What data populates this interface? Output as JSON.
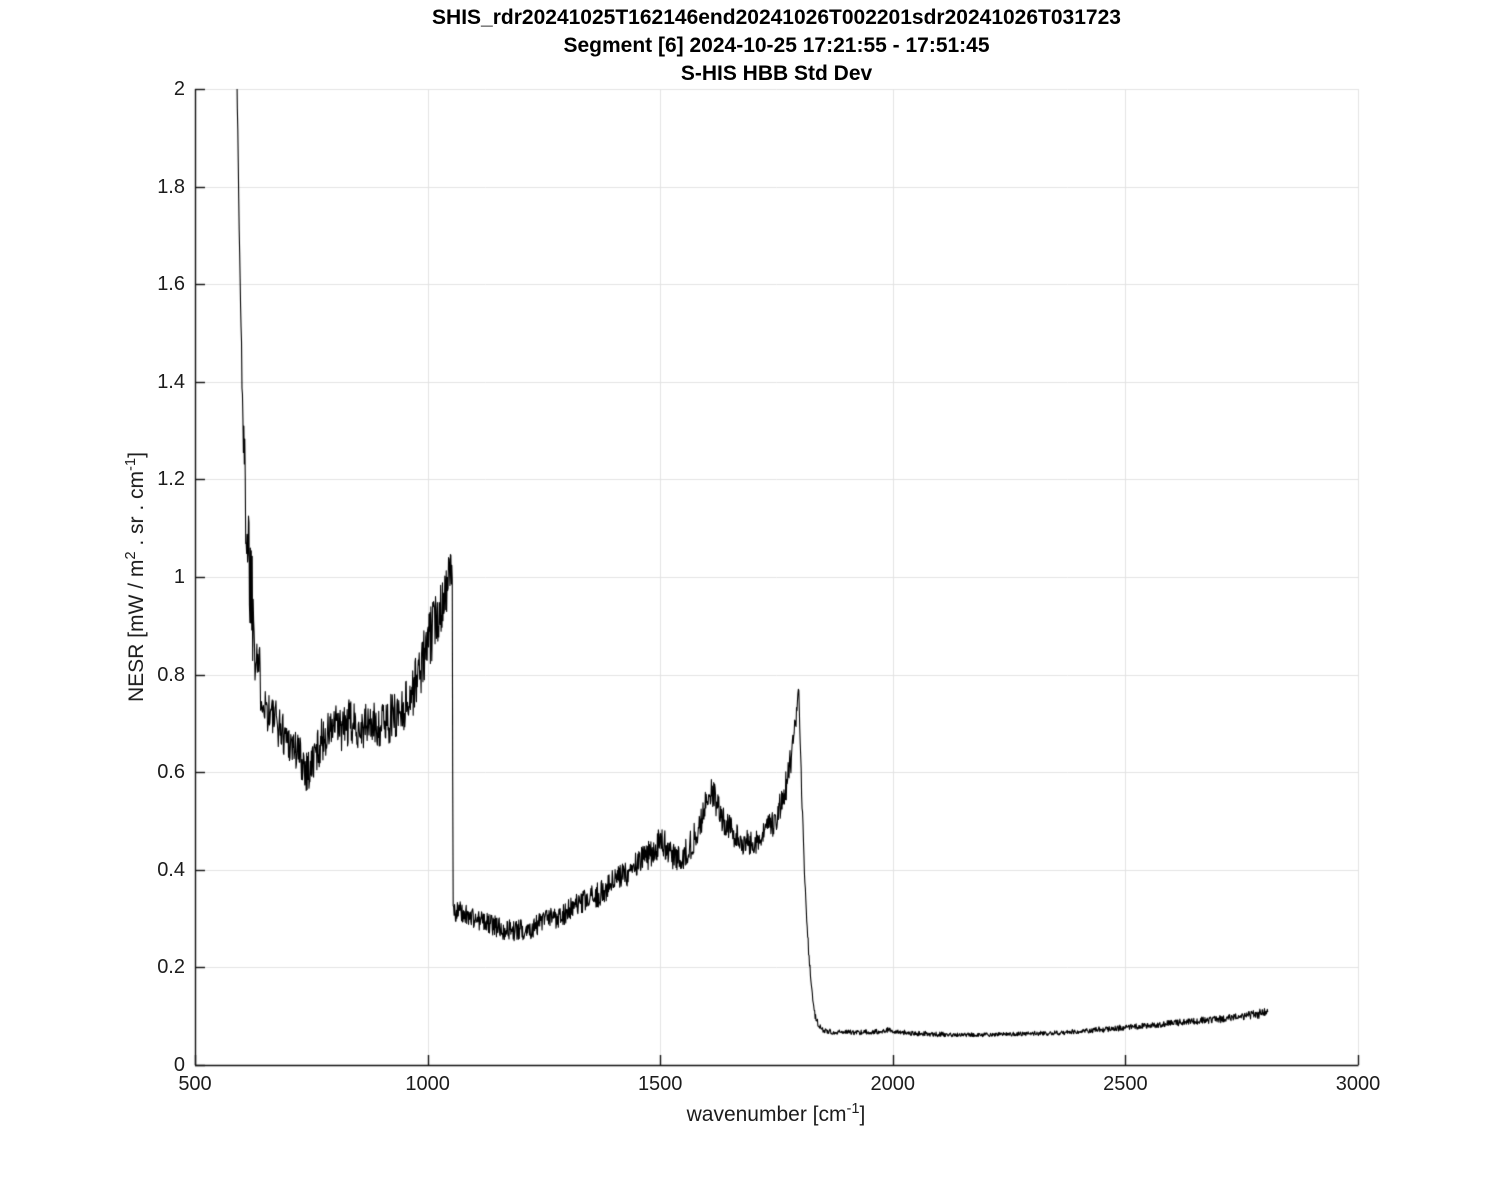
{
  "window": {
    "background": "#ffffff"
  },
  "header": {
    "title_line1": "SHIS_rdr20241025T162146end20241026T002201sdr20241026T031723",
    "title_line2": "Segment [6] 2024-10-25 17:21:55 - 17:51:45",
    "title_line3": "S-HIS HBB Std Dev"
  },
  "chart_data": {
    "type": "line",
    "title": "SHIS_rdr20241025T162146end20241026T002201sdr20241026T031723 / Segment [6] 2024-10-25 17:21:55 - 17:51:45 / S-HIS HBB Std Dev",
    "xlabel_segments": [
      {
        "t": "wavenumber [cm"
      },
      {
        "sup": "-1"
      },
      {
        "t": "]"
      }
    ],
    "ylabel_segments": [
      {
        "t": "NESR [mW / m"
      },
      {
        "sup": "2"
      },
      {
        "t": " . sr . cm"
      },
      {
        "sup": "-1"
      },
      {
        "t": "]"
      }
    ],
    "xlim": [
      500,
      3000
    ],
    "ylim": [
      0,
      2
    ],
    "xticks": {
      "values": [
        500,
        1000,
        1500,
        2000,
        2500,
        3000
      ],
      "labels": [
        "500",
        "1000",
        "1500",
        "2000",
        "2500",
        "3000"
      ]
    },
    "yticks": {
      "values": [
        0,
        0.2,
        0.4,
        0.6,
        0.8,
        1,
        1.2,
        1.4,
        1.6,
        1.8,
        2
      ],
      "labels": [
        "0",
        "0.2",
        "0.4",
        "0.6",
        "0.8",
        "1",
        "1.2",
        "1.4",
        "1.6",
        "1.8",
        "2"
      ]
    },
    "grid": true,
    "legend": "none",
    "colors": {
      "line": "#000000",
      "grid": "#e3e3e3",
      "axis": "#111111",
      "text": "#1c1c1c"
    },
    "series": [
      {
        "name": "S-HIS HBB Std Dev",
        "noise_seed": 1337,
        "sample_step_wavenumber": 1.0,
        "keypoints_format": [
          "wavenumber_cm-1",
          "mean_nesr",
          "noise_amplitude"
        ],
        "keypoints": [
          [
            590,
            2.05,
            0.02
          ],
          [
            592,
            1.9,
            0.03
          ],
          [
            595,
            1.72,
            0.04
          ],
          [
            598,
            1.55,
            0.05
          ],
          [
            602,
            1.38,
            0.06
          ],
          [
            606,
            1.22,
            0.09
          ],
          [
            612,
            1.1,
            0.13
          ],
          [
            618,
            1.02,
            0.15
          ],
          [
            624,
            0.95,
            0.13
          ],
          [
            630,
            0.88,
            0.1
          ],
          [
            638,
            0.8,
            0.07
          ],
          [
            645,
            0.76,
            0.05
          ],
          [
            655,
            0.73,
            0.05
          ],
          [
            670,
            0.71,
            0.045
          ],
          [
            690,
            0.68,
            0.045
          ],
          [
            710,
            0.655,
            0.045
          ],
          [
            730,
            0.625,
            0.05
          ],
          [
            742,
            0.605,
            0.05
          ],
          [
            750,
            0.61,
            0.05
          ],
          [
            760,
            0.64,
            0.045
          ],
          [
            772,
            0.665,
            0.045
          ],
          [
            786,
            0.68,
            0.045
          ],
          [
            800,
            0.695,
            0.045
          ],
          [
            815,
            0.685,
            0.045
          ],
          [
            830,
            0.7,
            0.05
          ],
          [
            845,
            0.695,
            0.045
          ],
          [
            860,
            0.69,
            0.045
          ],
          [
            875,
            0.7,
            0.045
          ],
          [
            890,
            0.695,
            0.045
          ],
          [
            905,
            0.7,
            0.05
          ],
          [
            920,
            0.71,
            0.05
          ],
          [
            935,
            0.72,
            0.05
          ],
          [
            950,
            0.735,
            0.05
          ],
          [
            965,
            0.76,
            0.055
          ],
          [
            980,
            0.8,
            0.055
          ],
          [
            995,
            0.845,
            0.06
          ],
          [
            1010,
            0.89,
            0.06
          ],
          [
            1025,
            0.935,
            0.06
          ],
          [
            1040,
            0.975,
            0.055
          ],
          [
            1048,
            1.0,
            0.05
          ],
          [
            1053,
            1.02,
            0.035
          ],
          [
            1054.5,
            0.33,
            0.02
          ],
          [
            1060,
            0.315,
            0.022
          ],
          [
            1080,
            0.31,
            0.022
          ],
          [
            1100,
            0.3,
            0.022
          ],
          [
            1130,
            0.29,
            0.022
          ],
          [
            1160,
            0.28,
            0.022
          ],
          [
            1190,
            0.275,
            0.022
          ],
          [
            1220,
            0.28,
            0.022
          ],
          [
            1250,
            0.295,
            0.024
          ],
          [
            1280,
            0.305,
            0.024
          ],
          [
            1310,
            0.32,
            0.025
          ],
          [
            1340,
            0.335,
            0.025
          ],
          [
            1370,
            0.35,
            0.027
          ],
          [
            1400,
            0.375,
            0.028
          ],
          [
            1430,
            0.395,
            0.028
          ],
          [
            1455,
            0.415,
            0.03
          ],
          [
            1475,
            0.43,
            0.03
          ],
          [
            1495,
            0.45,
            0.032
          ],
          [
            1506,
            0.46,
            0.032
          ],
          [
            1520,
            0.435,
            0.03
          ],
          [
            1535,
            0.42,
            0.028
          ],
          [
            1550,
            0.43,
            0.028
          ],
          [
            1565,
            0.45,
            0.03
          ],
          [
            1580,
            0.48,
            0.03
          ],
          [
            1595,
            0.52,
            0.032
          ],
          [
            1607,
            0.565,
            0.032
          ],
          [
            1618,
            0.545,
            0.03
          ],
          [
            1632,
            0.51,
            0.03
          ],
          [
            1648,
            0.485,
            0.028
          ],
          [
            1665,
            0.465,
            0.028
          ],
          [
            1682,
            0.455,
            0.026
          ],
          [
            1700,
            0.455,
            0.026
          ],
          [
            1715,
            0.465,
            0.028
          ],
          [
            1730,
            0.48,
            0.028
          ],
          [
            1745,
            0.5,
            0.03
          ],
          [
            1760,
            0.535,
            0.032
          ],
          [
            1772,
            0.575,
            0.034
          ],
          [
            1782,
            0.625,
            0.036
          ],
          [
            1790,
            0.685,
            0.03
          ],
          [
            1796,
            0.755,
            0.015
          ],
          [
            1798,
            0.775,
            0.008
          ],
          [
            1802,
            0.62,
            0.02
          ],
          [
            1806,
            0.5,
            0.02
          ],
          [
            1810,
            0.4,
            0.015
          ],
          [
            1815,
            0.3,
            0.012
          ],
          [
            1820,
            0.22,
            0.01
          ],
          [
            1826,
            0.15,
            0.008
          ],
          [
            1832,
            0.105,
            0.007
          ],
          [
            1840,
            0.082,
            0.006
          ],
          [
            1850,
            0.071,
            0.005
          ],
          [
            1870,
            0.068,
            0.005
          ],
          [
            1900,
            0.067,
            0.005
          ],
          [
            1930,
            0.067,
            0.005
          ],
          [
            1960,
            0.068,
            0.005
          ],
          [
            1988,
            0.072,
            0.006
          ],
          [
            2010,
            0.068,
            0.005
          ],
          [
            2050,
            0.065,
            0.005
          ],
          [
            2100,
            0.063,
            0.005
          ],
          [
            2150,
            0.062,
            0.004
          ],
          [
            2200,
            0.062,
            0.004
          ],
          [
            2250,
            0.063,
            0.004
          ],
          [
            2300,
            0.064,
            0.005
          ],
          [
            2350,
            0.066,
            0.005
          ],
          [
            2400,
            0.069,
            0.005
          ],
          [
            2450,
            0.073,
            0.006
          ],
          [
            2500,
            0.077,
            0.006
          ],
          [
            2550,
            0.081,
            0.006
          ],
          [
            2600,
            0.086,
            0.007
          ],
          [
            2650,
            0.09,
            0.007
          ],
          [
            2700,
            0.094,
            0.008
          ],
          [
            2740,
            0.098,
            0.008
          ],
          [
            2770,
            0.102,
            0.009
          ],
          [
            2795,
            0.106,
            0.01
          ],
          [
            2806,
            0.112,
            0.004
          ]
        ]
      }
    ]
  }
}
